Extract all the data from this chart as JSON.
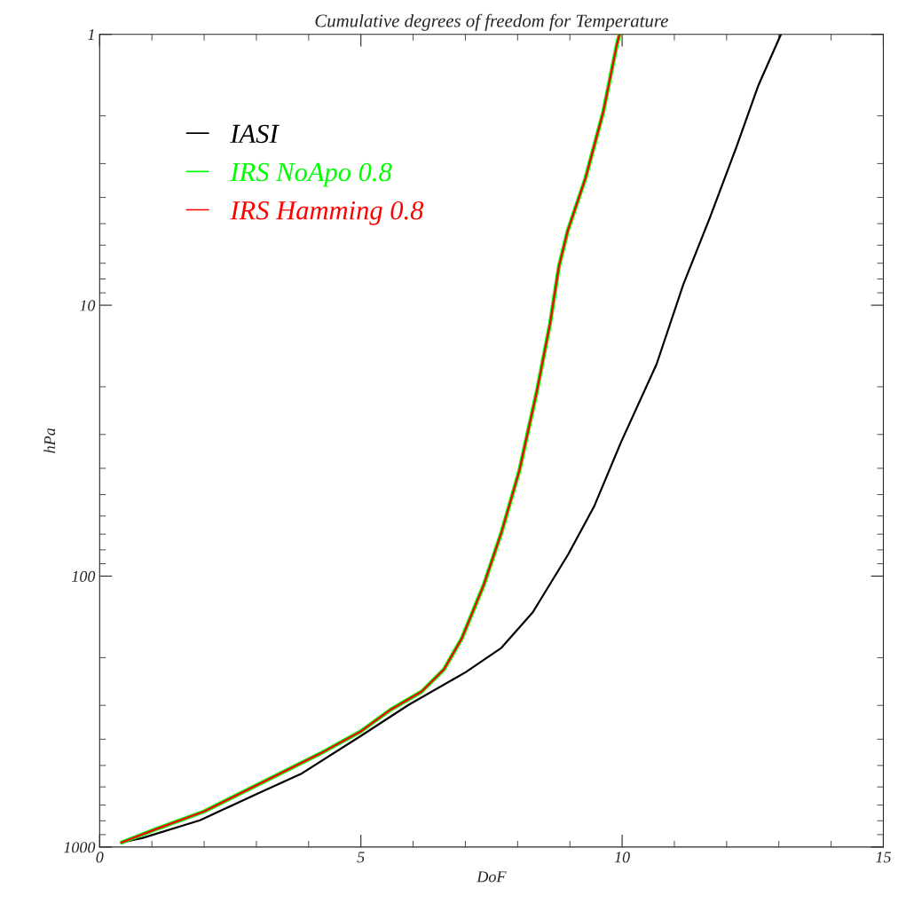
{
  "chart_data": {
    "type": "line",
    "title": "Cumulative degrees of freedom for Temperature",
    "xlabel": "DoF",
    "ylabel": "hPa",
    "xlim": [
      0,
      15
    ],
    "xticks": [
      0,
      5,
      10,
      15
    ],
    "ylim": [
      1000,
      1
    ],
    "yticks": [
      1,
      10,
      100,
      1000
    ],
    "log": "y",
    "grid": false,
    "legend": "top left",
    "marker": "none",
    "line_style": "solid",
    "series": [
      {
        "name": "IASI",
        "color": "#000000",
        "x": [
          0.42,
          0.81,
          1.92,
          3.02,
          3.87,
          4.99,
          5.91,
          7.01,
          7.69,
          8.29,
          8.97,
          9.47,
          9.98,
          10.66,
          11.17,
          11.68,
          12.19,
          12.61,
          13.04
        ],
        "values": [
          962,
          927,
          797,
          635,
          535,
          390,
          299,
          226,
          184,
          136,
          83,
          55,
          32,
          16.5,
          8.4,
          4.75,
          2.6,
          1.54,
          1
        ]
      },
      {
        "name": "IRS NoApo 0.8",
        "color": "#00ff00",
        "x": [
          0.42,
          1.07,
          2.0,
          3.19,
          4.21,
          4.99,
          5.57,
          6.16,
          6.59,
          6.93,
          7.35,
          7.69,
          8.03,
          8.37,
          8.62,
          8.79,
          8.96,
          9.3,
          9.64,
          9.9,
          9.95
        ],
        "values": [
          962,
          860,
          739,
          568,
          453,
          375,
          311,
          267,
          221,
          170,
          108,
          69,
          41,
          20.7,
          11.7,
          7.2,
          5.3,
          3.39,
          1.93,
          1.09,
          1
        ]
      },
      {
        "name": "IRS Hamming 0.8",
        "color": "#ff0000",
        "x": [
          0.42,
          1.07,
          2.0,
          3.19,
          4.21,
          4.99,
          5.57,
          6.16,
          6.59,
          6.93,
          7.35,
          7.69,
          8.03,
          8.37,
          8.62,
          8.79,
          8.96,
          9.3,
          9.64,
          9.9,
          9.95
        ],
        "values": [
          962,
          860,
          739,
          568,
          453,
          375,
          311,
          267,
          221,
          170,
          108,
          69,
          41,
          20.7,
          11.7,
          7.2,
          5.3,
          3.39,
          1.93,
          1.09,
          1
        ]
      }
    ]
  }
}
